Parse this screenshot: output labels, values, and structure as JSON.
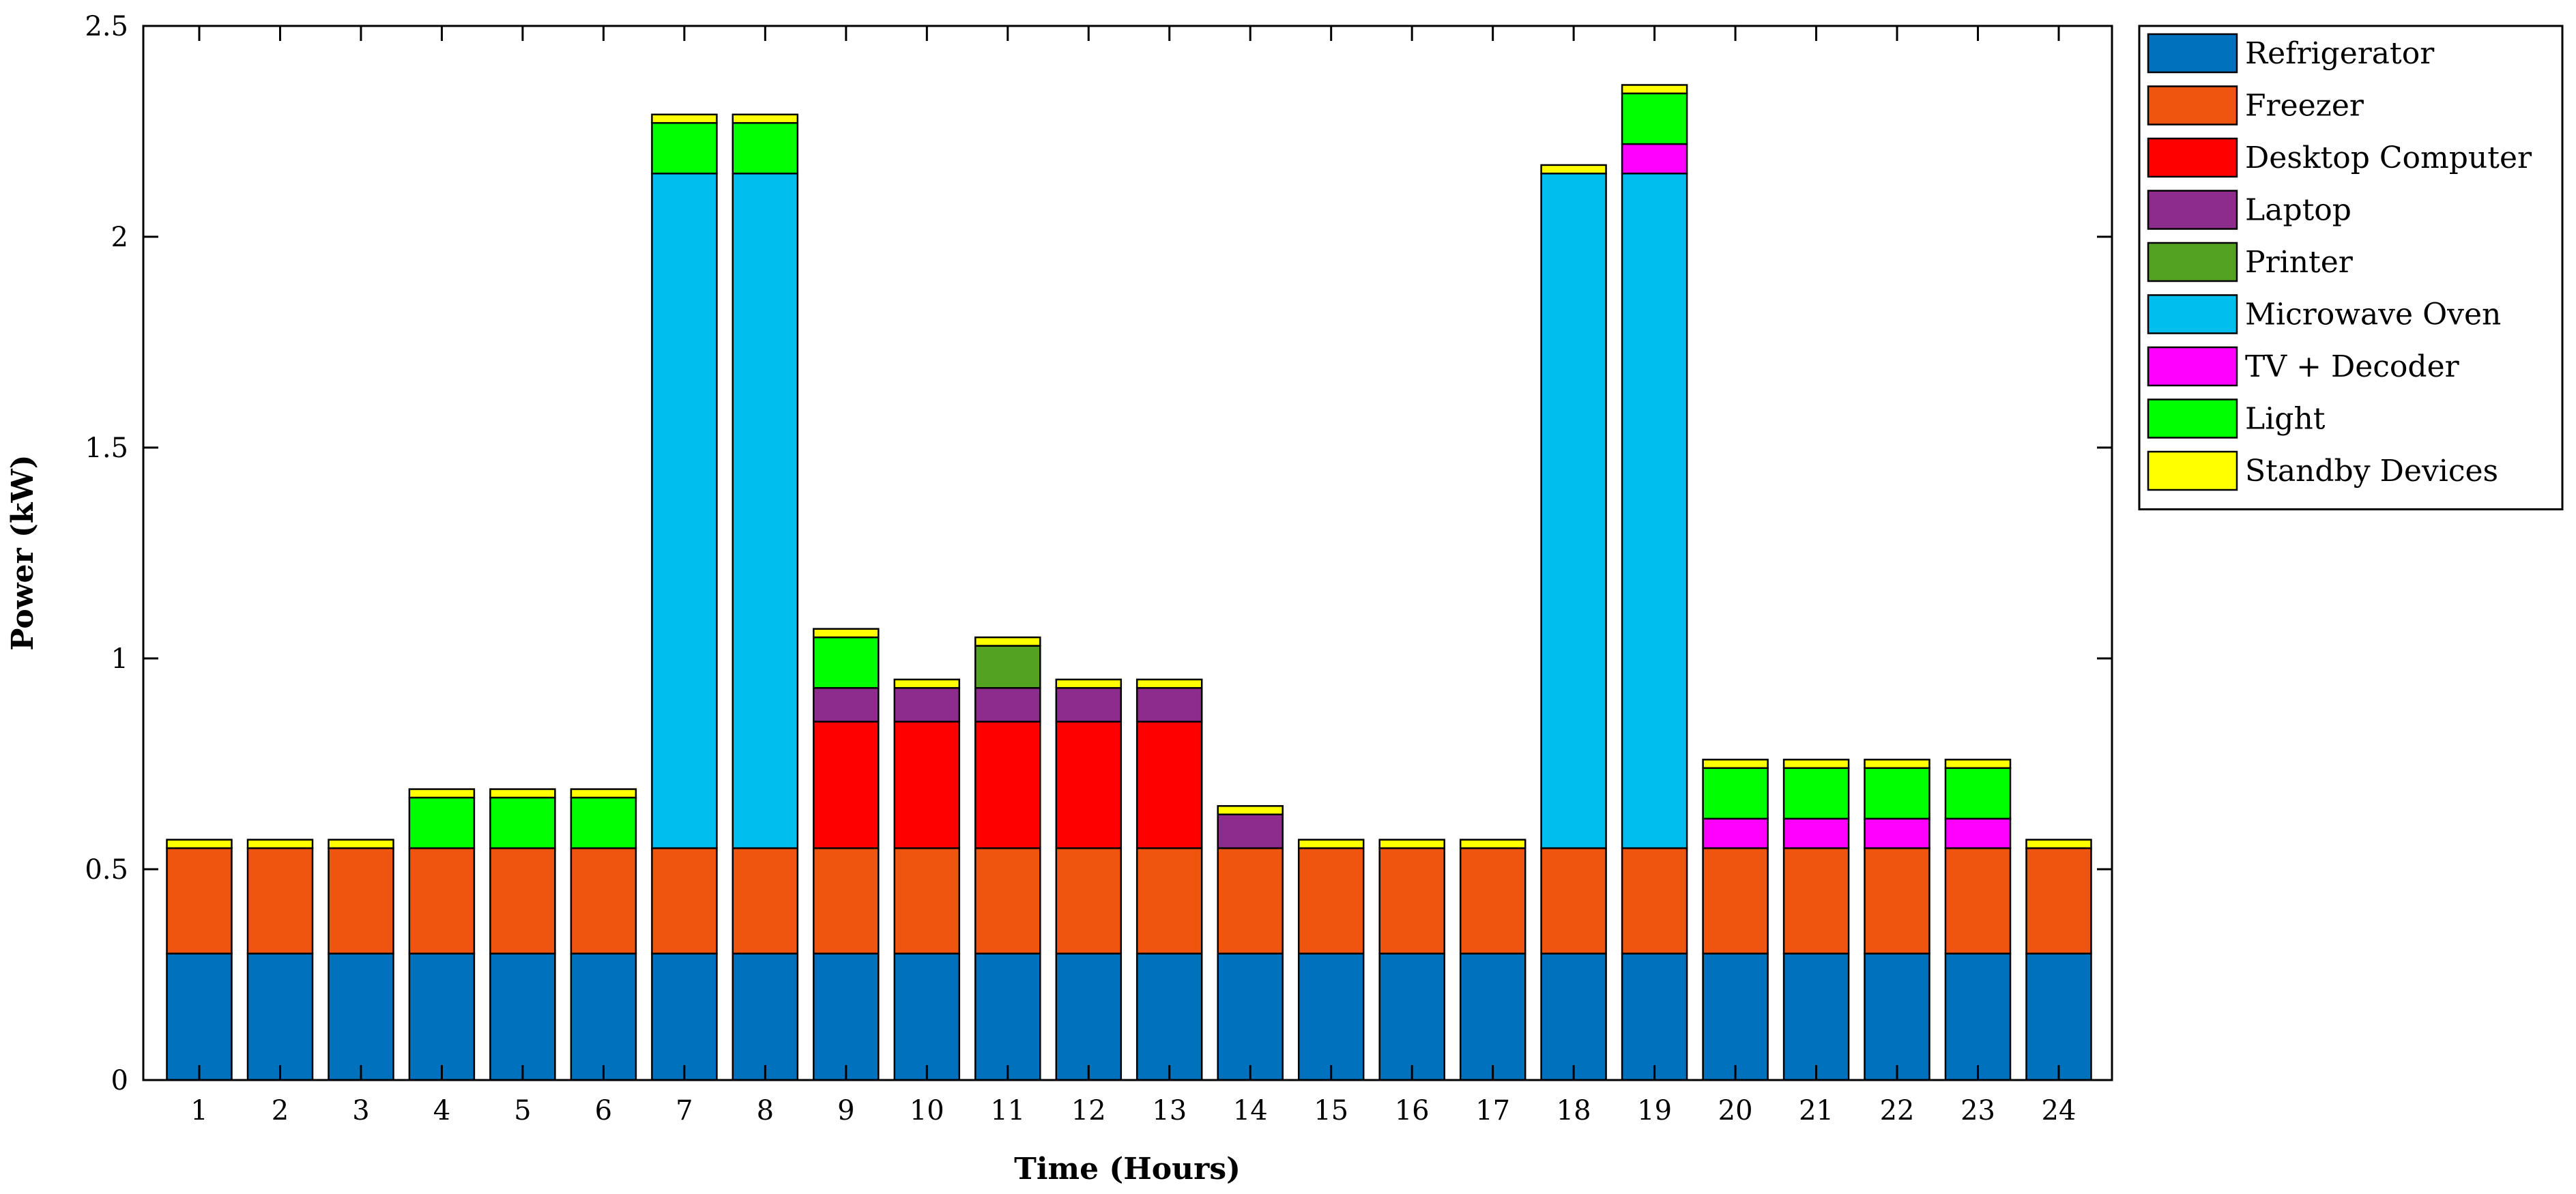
{
  "chart_data": {
    "type": "bar",
    "stacked": true,
    "xlabel": "Time (Hours)",
    "ylabel": "Power (kW)",
    "ylim": [
      0,
      2.5
    ],
    "yticks": [
      0,
      0.5,
      1,
      1.5,
      2,
      2.5
    ],
    "ytick_labels": [
      "0",
      "0.5",
      "1",
      "1.5",
      "2",
      "2.5"
    ],
    "grid": false,
    "legend_position": "outside-top-right",
    "categories": [
      "1",
      "2",
      "3",
      "4",
      "5",
      "6",
      "7",
      "8",
      "9",
      "10",
      "11",
      "12",
      "13",
      "14",
      "15",
      "16",
      "17",
      "18",
      "19",
      "20",
      "21",
      "22",
      "23",
      "24"
    ],
    "series": [
      {
        "name": "Refrigerator",
        "color": "#0072BD",
        "values": [
          0.3,
          0.3,
          0.3,
          0.3,
          0.3,
          0.3,
          0.3,
          0.3,
          0.3,
          0.3,
          0.3,
          0.3,
          0.3,
          0.3,
          0.3,
          0.3,
          0.3,
          0.3,
          0.3,
          0.3,
          0.3,
          0.3,
          0.3,
          0.3
        ]
      },
      {
        "name": "Freezer",
        "color": "#F05510",
        "values": [
          0.25,
          0.25,
          0.25,
          0.25,
          0.25,
          0.25,
          0.25,
          0.25,
          0.25,
          0.25,
          0.25,
          0.25,
          0.25,
          0.25,
          0.25,
          0.25,
          0.25,
          0.25,
          0.25,
          0.25,
          0.25,
          0.25,
          0.25,
          0.25
        ]
      },
      {
        "name": "Desktop Computer",
        "color": "#FF0000",
        "values": [
          0,
          0,
          0,
          0,
          0,
          0,
          0,
          0,
          0.3,
          0.3,
          0.3,
          0.3,
          0.3,
          0,
          0,
          0,
          0,
          0,
          0,
          0,
          0,
          0,
          0,
          0
        ]
      },
      {
        "name": "Laptop",
        "color": "#8E2C8E",
        "values": [
          0,
          0,
          0,
          0,
          0,
          0,
          0,
          0,
          0.08,
          0.08,
          0.08,
          0.08,
          0.08,
          0.08,
          0,
          0,
          0,
          0,
          0,
          0,
          0,
          0,
          0,
          0
        ]
      },
      {
        "name": "Printer",
        "color": "#53A221",
        "values": [
          0,
          0,
          0,
          0,
          0,
          0,
          0,
          0,
          0,
          0,
          0.1,
          0,
          0,
          0,
          0,
          0,
          0,
          0,
          0,
          0,
          0,
          0,
          0,
          0
        ]
      },
      {
        "name": "Microwave Oven",
        "color": "#00BFEF",
        "values": [
          0,
          0,
          0,
          0,
          0,
          0,
          1.6,
          1.6,
          0,
          0,
          0,
          0,
          0,
          0,
          0,
          0,
          0,
          1.6,
          1.6,
          0,
          0,
          0,
          0,
          0
        ]
      },
      {
        "name": "TV + Decoder",
        "color": "#FF00FF",
        "values": [
          0,
          0,
          0,
          0,
          0,
          0,
          0,
          0,
          0,
          0,
          0,
          0,
          0,
          0,
          0,
          0,
          0,
          0,
          0.07,
          0.07,
          0.07,
          0.07,
          0.07,
          0
        ]
      },
      {
        "name": "Light",
        "color": "#00FF00",
        "values": [
          0,
          0,
          0,
          0.12,
          0.12,
          0.12,
          0.12,
          0.12,
          0.12,
          0,
          0,
          0,
          0,
          0,
          0,
          0,
          0,
          0,
          0.12,
          0.12,
          0.12,
          0.12,
          0.12,
          0
        ]
      },
      {
        "name": "Standby Devices",
        "color": "#FFFF00",
        "values": [
          0.02,
          0.02,
          0.02,
          0.02,
          0.02,
          0.02,
          0.02,
          0.02,
          0.02,
          0.02,
          0.02,
          0.02,
          0.02,
          0.02,
          0.02,
          0.02,
          0.02,
          0.02,
          0.02,
          0.02,
          0.02,
          0.02,
          0.02,
          0.02
        ]
      }
    ]
  }
}
